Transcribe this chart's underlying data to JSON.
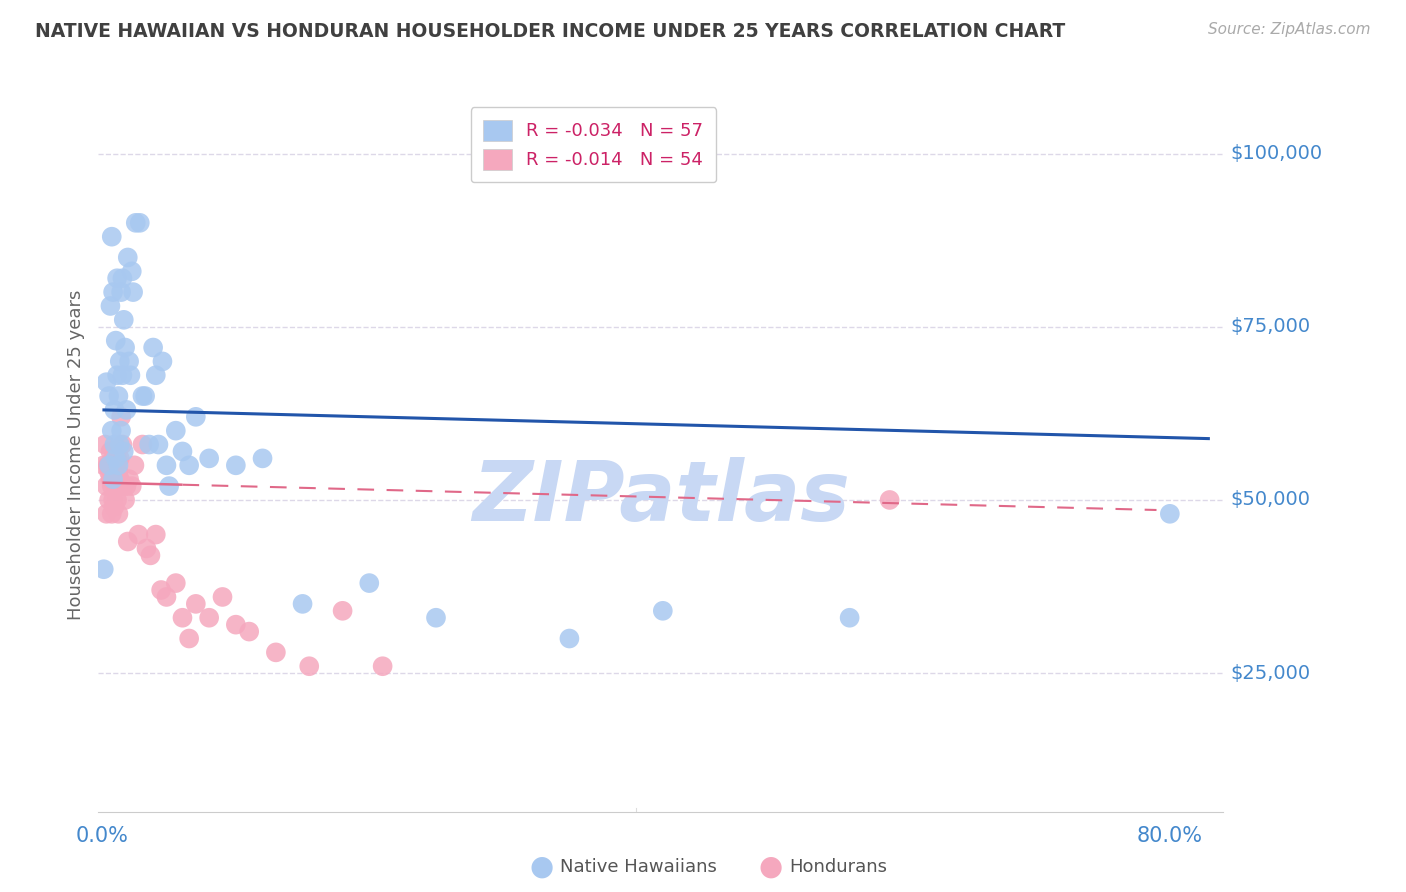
{
  "title": "NATIVE HAWAIIAN VS HONDURAN HOUSEHOLDER INCOME UNDER 25 YEARS CORRELATION CHART",
  "source": "Source: ZipAtlas.com",
  "ylabel": "Householder Income Under 25 years",
  "ytick_values": [
    25000,
    50000,
    75000,
    100000
  ],
  "ytick_labels": [
    "$25,000",
    "$50,000",
    "$75,000",
    "$100,000"
  ],
  "ymin": 5000,
  "ymax": 108000,
  "xmin": -0.003,
  "xmax": 0.84,
  "legend_r1": "-0.034",
  "legend_n1": "57",
  "legend_r2": "-0.014",
  "legend_n2": "54",
  "blue_color": "#a8c8f0",
  "pink_color": "#f5a8be",
  "line_blue": "#2255aa",
  "line_pink": "#e06888",
  "grid_color": "#ddd8e8",
  "watermark_color": "#c8d8f4",
  "title_color": "#404040",
  "axis_tick_color": "#4488cc",
  "source_color": "#aaaaaa",
  "ylabel_color": "#666666",
  "bottom_legend_color": "#555555",
  "native_hawaiians_x": [
    0.001,
    0.003,
    0.005,
    0.005,
    0.006,
    0.007,
    0.007,
    0.008,
    0.008,
    0.009,
    0.009,
    0.01,
    0.01,
    0.011,
    0.011,
    0.012,
    0.012,
    0.013,
    0.013,
    0.014,
    0.014,
    0.015,
    0.015,
    0.016,
    0.016,
    0.017,
    0.018,
    0.019,
    0.02,
    0.021,
    0.022,
    0.023,
    0.025,
    0.028,
    0.03,
    0.032,
    0.035,
    0.038,
    0.04,
    0.042,
    0.045,
    0.048,
    0.05,
    0.055,
    0.06,
    0.065,
    0.07,
    0.08,
    0.1,
    0.12,
    0.15,
    0.2,
    0.25,
    0.35,
    0.42,
    0.56,
    0.8
  ],
  "native_hawaiians_y": [
    40000,
    67000,
    55000,
    65000,
    78000,
    60000,
    88000,
    53000,
    80000,
    63000,
    58000,
    56000,
    73000,
    68000,
    82000,
    55000,
    65000,
    58000,
    70000,
    60000,
    80000,
    68000,
    82000,
    57000,
    76000,
    72000,
    63000,
    85000,
    70000,
    68000,
    83000,
    80000,
    90000,
    90000,
    65000,
    65000,
    58000,
    72000,
    68000,
    58000,
    70000,
    55000,
    52000,
    60000,
    57000,
    55000,
    62000,
    56000,
    55000,
    56000,
    35000,
    38000,
    33000,
    30000,
    34000,
    33000,
    48000
  ],
  "hondurans_x": [
    0.001,
    0.002,
    0.003,
    0.003,
    0.004,
    0.005,
    0.005,
    0.006,
    0.006,
    0.007,
    0.007,
    0.007,
    0.008,
    0.008,
    0.008,
    0.009,
    0.009,
    0.01,
    0.01,
    0.011,
    0.011,
    0.012,
    0.012,
    0.013,
    0.013,
    0.014,
    0.015,
    0.016,
    0.017,
    0.018,
    0.019,
    0.02,
    0.022,
    0.024,
    0.027,
    0.03,
    0.033,
    0.036,
    0.04,
    0.044,
    0.048,
    0.055,
    0.06,
    0.065,
    0.07,
    0.08,
    0.09,
    0.1,
    0.11,
    0.13,
    0.155,
    0.18,
    0.21,
    0.59
  ],
  "hondurans_y": [
    55000,
    58000,
    52000,
    48000,
    55000,
    54000,
    50000,
    57000,
    53000,
    52000,
    48000,
    55000,
    56000,
    50000,
    53000,
    54000,
    49000,
    52000,
    55000,
    50000,
    56000,
    54000,
    48000,
    53000,
    56000,
    62000,
    58000,
    52000,
    50000,
    52000,
    44000,
    53000,
    52000,
    55000,
    45000,
    58000,
    43000,
    42000,
    45000,
    37000,
    36000,
    38000,
    33000,
    30000,
    35000,
    33000,
    36000,
    32000,
    31000,
    28000,
    26000,
    34000,
    26000,
    50000
  ]
}
